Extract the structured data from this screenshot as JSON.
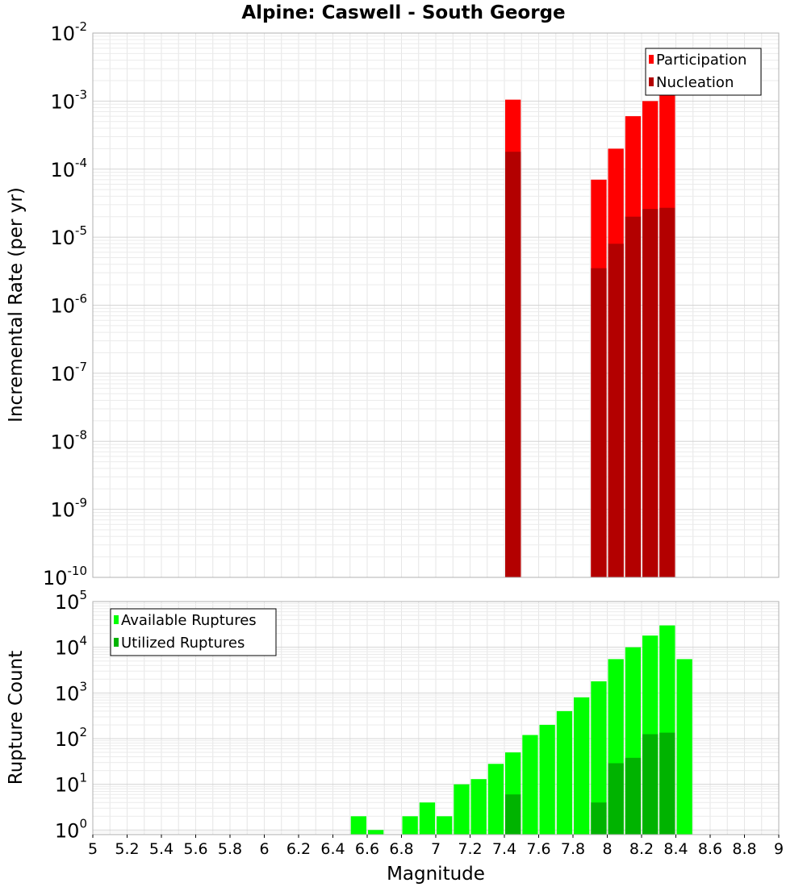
{
  "title": "Alpine: Caswell - South George",
  "colors": {
    "participation": "#ff0000",
    "nucleation": "#b30000",
    "available": "#00ff00",
    "utilized": "#00b300"
  },
  "chart_data": [
    {
      "type": "bar",
      "name": "rate",
      "ylabel": "Incremental Rate (per yr)",
      "yscale": "log",
      "ylim_exp": [
        -10,
        -2
      ],
      "xlim": [
        5,
        9
      ],
      "grid": true,
      "legend_placement": "top-right",
      "y_ticks": [
        {
          "base": "10",
          "exp": "-2"
        },
        {
          "base": "10",
          "exp": "-3"
        },
        {
          "base": "10",
          "exp": "-4"
        },
        {
          "base": "10",
          "exp": "-5"
        },
        {
          "base": "10",
          "exp": "-6"
        },
        {
          "base": "10",
          "exp": "-7"
        },
        {
          "base": "10",
          "exp": "-8"
        },
        {
          "base": "10",
          "exp": "-9"
        },
        {
          "base": "10",
          "exp": "-10"
        }
      ],
      "series": [
        {
          "name": "Participation",
          "x": [
            7.45,
            7.95,
            8.05,
            8.15,
            8.25,
            8.35
          ],
          "values": [
            0.00105,
            7e-05,
            0.0002,
            0.0006,
            0.001,
            0.0013
          ]
        },
        {
          "name": "Nucleation",
          "x": [
            7.45,
            7.95,
            8.05,
            8.15,
            8.25,
            8.35
          ],
          "values": [
            0.00018,
            3.5e-06,
            8e-06,
            2e-05,
            2.6e-05,
            2.7e-05
          ]
        }
      ]
    },
    {
      "type": "bar",
      "name": "count",
      "ylabel": "Rupture Count",
      "xlabel": "Magnitude",
      "yscale": "log",
      "ylim_exp": [
        -0.1,
        5
      ],
      "xlim": [
        5,
        9
      ],
      "grid": true,
      "legend_placement": "top-left",
      "y_ticks": [
        {
          "base": "10",
          "exp": "5"
        },
        {
          "base": "10",
          "exp": "4"
        },
        {
          "base": "10",
          "exp": "3"
        },
        {
          "base": "10",
          "exp": "2"
        },
        {
          "base": "10",
          "exp": "1"
        },
        {
          "base": "10",
          "exp": "0"
        }
      ],
      "x_ticks": [
        "5",
        "5.2",
        "5.4",
        "5.6",
        "5.8",
        "6",
        "6.2",
        "6.4",
        "6.6",
        "6.8",
        "7",
        "7.2",
        "7.4",
        "7.6",
        "7.8",
        "8",
        "8.2",
        "8.4",
        "8.6",
        "8.8",
        "9"
      ],
      "series": [
        {
          "name": "Available Ruptures",
          "x": [
            6.55,
            6.65,
            6.85,
            6.95,
            7.05,
            7.15,
            7.25,
            7.35,
            7.45,
            7.55,
            7.65,
            7.75,
            7.85,
            7.95,
            8.05,
            8.15,
            8.25,
            8.35,
            8.45
          ],
          "values": [
            2,
            1,
            2,
            4,
            2,
            10,
            13,
            28,
            50,
            120,
            200,
            400,
            800,
            1800,
            5500,
            10000,
            18000,
            30000,
            5500
          ]
        },
        {
          "name": "Utilized Ruptures",
          "x": [
            7.45,
            7.95,
            8.05,
            8.15,
            8.25,
            8.35
          ],
          "values": [
            6,
            4,
            29,
            38,
            125,
            135
          ]
        }
      ]
    }
  ]
}
